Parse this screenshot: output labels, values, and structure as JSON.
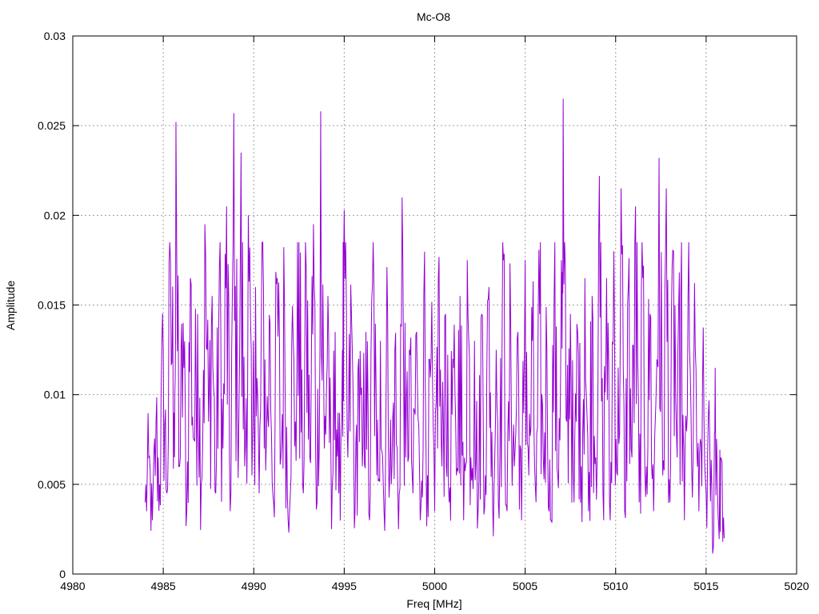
{
  "chart_data": {
    "type": "line",
    "title": "Mc-O8",
    "xlabel": "Freq [MHz]",
    "ylabel": "Amplitude",
    "xlim": [
      4980,
      5020
    ],
    "ylim": [
      0,
      0.03
    ],
    "x_ticks": [
      "4980",
      "4985",
      "4990",
      "4995",
      "5000",
      "5005",
      "5010",
      "5015",
      "5020"
    ],
    "y_ticks": [
      "0",
      "0.005",
      "0.01",
      "0.015",
      "0.02",
      "0.025",
      "0.03"
    ],
    "grid": true,
    "line_color": "#9400d3",
    "series": [
      {
        "x_range": [
          4984.0,
          5016.0
        ],
        "points": [
          [
            4984.0,
            0.004
          ],
          [
            4984.2,
            0.0065
          ],
          [
            4984.4,
            0.003
          ],
          [
            4984.6,
            0.0085
          ],
          [
            4984.8,
            0.005
          ],
          [
            4985.0,
            0.0125
          ],
          [
            4985.2,
            0.0045
          ],
          [
            4985.4,
            0.0175
          ],
          [
            4985.6,
            0.009
          ],
          [
            4985.7,
            0.0252
          ],
          [
            4985.9,
            0.006
          ],
          [
            4986.1,
            0.014
          ],
          [
            4986.3,
            0.0035
          ],
          [
            4986.5,
            0.0165
          ],
          [
            4986.7,
            0.0075
          ],
          [
            4986.9,
            0.0145
          ],
          [
            4987.1,
            0.005
          ],
          [
            4987.3,
            0.0195
          ],
          [
            4987.5,
            0.0085
          ],
          [
            4987.7,
            0.0155
          ],
          [
            4987.9,
            0.0045
          ],
          [
            4988.1,
            0.017
          ],
          [
            4988.3,
            0.007
          ],
          [
            4988.5,
            0.0205
          ],
          [
            4988.7,
            0.0035
          ],
          [
            4988.9,
            0.0257
          ],
          [
            4989.1,
            0.009
          ],
          [
            4989.3,
            0.0235
          ],
          [
            4989.5,
            0.006
          ],
          [
            4989.7,
            0.02
          ],
          [
            4989.9,
            0.0055
          ],
          [
            4990.1,
            0.016
          ],
          [
            4990.3,
            0.0045
          ],
          [
            4990.5,
            0.0185
          ],
          [
            4990.7,
            0.0075
          ],
          [
            4990.9,
            0.014
          ],
          [
            4991.1,
            0.004
          ],
          [
            4991.3,
            0.0165
          ],
          [
            4991.5,
            0.0065
          ],
          [
            4991.7,
            0.015
          ],
          [
            4991.9,
            0.003
          ],
          [
            4992.1,
            0.013
          ],
          [
            4992.3,
            0.0085
          ],
          [
            4992.5,
            0.0185
          ],
          [
            4992.7,
            0.005
          ],
          [
            4992.9,
            0.017
          ],
          [
            4993.1,
            0.0065
          ],
          [
            4993.3,
            0.0195
          ],
          [
            4993.5,
            0.004
          ],
          [
            4993.7,
            0.0258
          ],
          [
            4993.9,
            0.007
          ],
          [
            4994.1,
            0.0155
          ],
          [
            4994.3,
            0.0025
          ],
          [
            4994.5,
            0.0135
          ],
          [
            4994.7,
            0.0045
          ],
          [
            4994.9,
            0.0125
          ],
          [
            4995.0,
            0.0203
          ],
          [
            4995.2,
            0.0065
          ],
          [
            4995.4,
            0.0145
          ],
          [
            4995.6,
            0.0035
          ],
          [
            4995.8,
            0.012
          ],
          [
            4996.0,
            0.006
          ],
          [
            4996.2,
            0.0135
          ],
          [
            4996.4,
            0.003
          ],
          [
            4996.6,
            0.0185
          ],
          [
            4996.8,
            0.0055
          ],
          [
            4997.0,
            0.013
          ],
          [
            4997.2,
            0.0035
          ],
          [
            4997.4,
            0.0145
          ],
          [
            4997.6,
            0.005
          ],
          [
            4997.8,
            0.0125
          ],
          [
            4998.0,
            0.0025
          ],
          [
            4998.2,
            0.021
          ],
          [
            4998.4,
            0.0065
          ],
          [
            4998.6,
            0.0125
          ],
          [
            4998.8,
            0.0045
          ],
          [
            4999.0,
            0.0135
          ],
          [
            4999.2,
            0.003
          ],
          [
            4999.4,
            0.0155
          ],
          [
            4999.6,
            0.0055
          ],
          [
            4999.8,
            0.012
          ],
          [
            5000.0,
            0.0035
          ],
          [
            5000.2,
            0.0165
          ],
          [
            5000.4,
            0.006
          ],
          [
            5000.6,
            0.0145
          ],
          [
            5000.8,
            0.004
          ],
          [
            5001.0,
            0.012
          ],
          [
            5001.2,
            0.0055
          ],
          [
            5001.4,
            0.0155
          ],
          [
            5001.6,
            0.003
          ],
          [
            5001.8,
            0.0175
          ],
          [
            5002.0,
            0.0065
          ],
          [
            5002.2,
            0.013
          ],
          [
            5002.4,
            0.0035
          ],
          [
            5002.6,
            0.0145
          ],
          [
            5002.8,
            0.0055
          ],
          [
            5003.0,
            0.016
          ],
          [
            5003.2,
            0.004
          ],
          [
            5003.4,
            0.0125
          ],
          [
            5003.6,
            0.0065
          ],
          [
            5003.8,
            0.0175
          ],
          [
            5004.0,
            0.0035
          ],
          [
            5004.2,
            0.014
          ],
          [
            5004.4,
            0.006
          ],
          [
            5004.6,
            0.0135
          ],
          [
            5004.8,
            0.003
          ],
          [
            5005.0,
            0.0175
          ],
          [
            5005.2,
            0.0055
          ],
          [
            5005.4,
            0.013
          ],
          [
            5005.6,
            0.004
          ],
          [
            5005.8,
            0.0145
          ],
          [
            5006.0,
            0.0065
          ],
          [
            5006.2,
            0.0125
          ],
          [
            5006.4,
            0.003
          ],
          [
            5006.6,
            0.0155
          ],
          [
            5006.8,
            0.0055
          ],
          [
            5007.0,
            0.0175
          ],
          [
            5007.1,
            0.0265
          ],
          [
            5007.3,
            0.0085
          ],
          [
            5007.5,
            0.0145
          ],
          [
            5007.7,
            0.004
          ],
          [
            5007.9,
            0.0135
          ],
          [
            5008.1,
            0.006
          ],
          [
            5008.3,
            0.0165
          ],
          [
            5008.5,
            0.0035
          ],
          [
            5008.7,
            0.0155
          ],
          [
            5008.9,
            0.0065
          ],
          [
            5009.1,
            0.0222
          ],
          [
            5009.3,
            0.0045
          ],
          [
            5009.5,
            0.0165
          ],
          [
            5009.7,
            0.003
          ],
          [
            5009.9,
            0.018
          ],
          [
            5010.1,
            0.0055
          ],
          [
            5010.3,
            0.0215
          ],
          [
            5010.5,
            0.0035
          ],
          [
            5010.7,
            0.016
          ],
          [
            5010.9,
            0.0065
          ],
          [
            5011.1,
            0.0205
          ],
          [
            5011.3,
            0.004
          ],
          [
            5011.5,
            0.0165
          ],
          [
            5011.7,
            0.006
          ],
          [
            5011.9,
            0.0145
          ],
          [
            5012.1,
            0.0035
          ],
          [
            5012.4,
            0.0232
          ],
          [
            5012.6,
            0.0055
          ],
          [
            5012.8,
            0.0215
          ],
          [
            5013.0,
            0.004
          ],
          [
            5013.2,
            0.018
          ],
          [
            5013.4,
            0.0065
          ],
          [
            5013.6,
            0.0155
          ],
          [
            5013.8,
            0.003
          ],
          [
            5014.0,
            0.0155
          ],
          [
            5014.2,
            0.006
          ],
          [
            5014.4,
            0.0125
          ],
          [
            5014.6,
            0.0035
          ],
          [
            5014.8,
            0.0105
          ],
          [
            5015.0,
            0.0045
          ],
          [
            5015.2,
            0.0075
          ],
          [
            5015.4,
            0.0015
          ],
          [
            5015.5,
            0.0115
          ],
          [
            5015.7,
            0.0025
          ],
          [
            5015.8,
            0.0065
          ],
          [
            5016.0,
            0.002
          ]
        ]
      }
    ]
  }
}
